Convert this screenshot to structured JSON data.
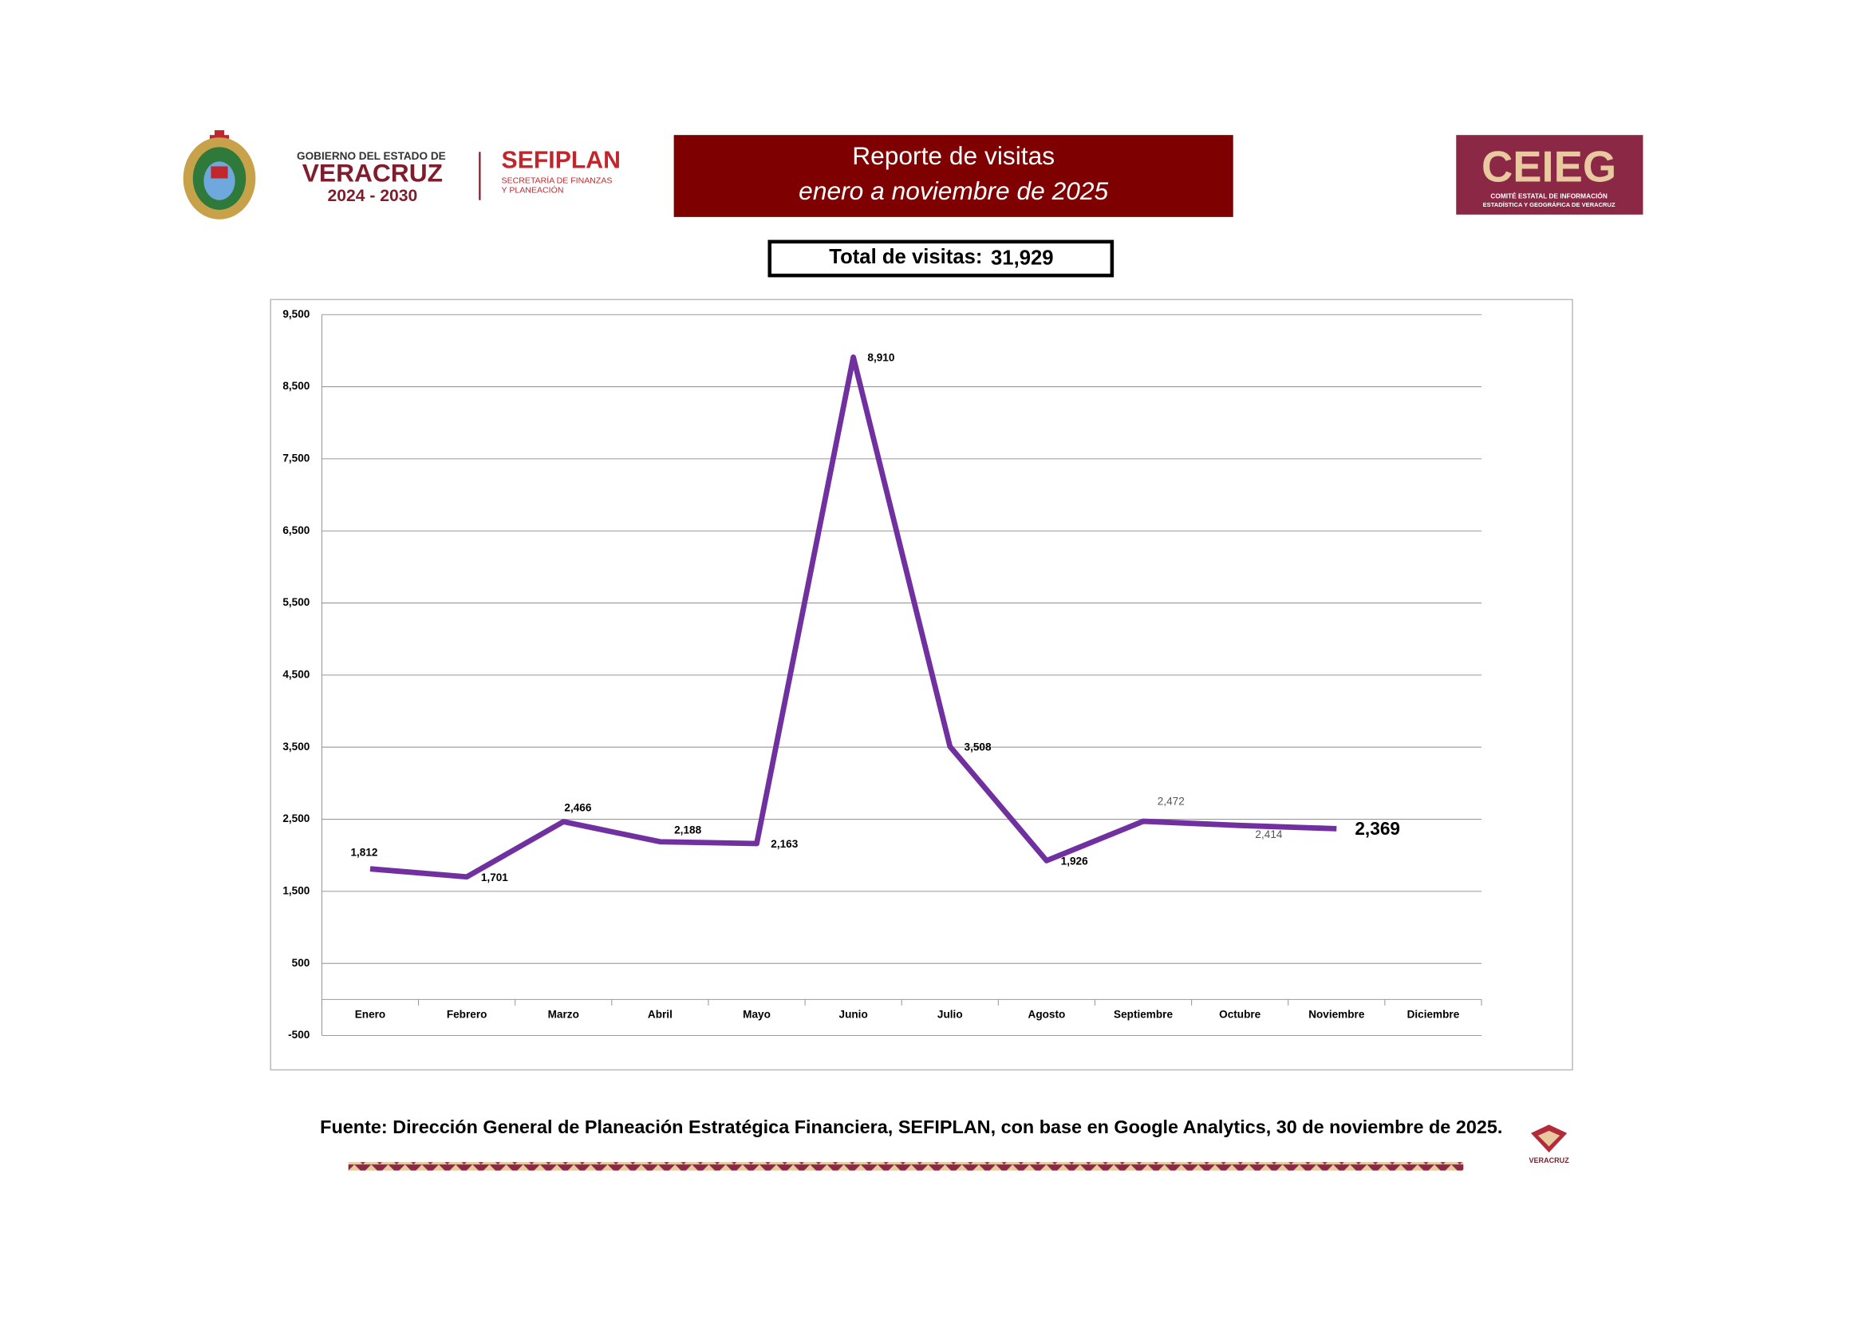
{
  "header": {
    "gov_line1": "GOBIERNO DEL ESTADO DE",
    "gov_line2": "VERACRUZ",
    "gov_line3": "2024 - 2030",
    "sefiplan": "SEFIPLAN",
    "sefiplan_line1": "SECRETARÍA DE FINANZAS",
    "sefiplan_line2": "Y PLANEACIÓN",
    "title": "Reporte de visitas",
    "subtitle": "enero a noviembre de 2025",
    "ceieg": "CEIEG",
    "ceieg_line1": "COMITÉ ESTATAL DE INFORMACIÓN",
    "ceieg_line2": "ESTADÍSTICA Y GEOGRÁFICA DE VERACRUZ",
    "total_label": "Total de visitas:",
    "total_value": "31,929"
  },
  "chart_data": {
    "type": "line",
    "categories": [
      "Enero",
      "Febrero",
      "Marzo",
      "Abril",
      "Mayo",
      "Junio",
      "Julio",
      "Agosto",
      "Septiembre",
      "Octubre",
      "Noviembre",
      "Diciembre"
    ],
    "values": [
      1812,
      1701,
      2466,
      2188,
      2163,
      8910,
      3508,
      1926,
      2472,
      2414,
      2369,
      null
    ],
    "value_labels": [
      "1,812",
      "1,701",
      "2,466",
      "2,188",
      "2,163",
      "8,910",
      "3,508",
      "1,926",
      "2,472",
      "2,414",
      "2,369",
      null
    ],
    "color": "#7030a0",
    "ylim": [
      -500,
      9500
    ],
    "yticks": [
      -500,
      500,
      {
        "value": 1500,
        "label": "1,500"
      },
      {
        "value": 2500,
        "label": "2,500"
      },
      {
        "value": 3500,
        "label": "3,500"
      },
      {
        "value": 4500,
        "label": "4,500"
      },
      {
        "value": 5500,
        "label": "5,500"
      },
      {
        "value": 6500,
        "label": "6,500"
      },
      {
        "value": 7500,
        "label": "7,500"
      },
      {
        "value": 8500,
        "label": "8,500"
      },
      {
        "value": 9500,
        "label": "9,500"
      }
    ],
    "grid": true
  },
  "footer": {
    "source": "Fuente: Dirección General de Planeación Estratégica Financiera, SEFIPLAN, con base en Google Analytics, 30 de noviembre de 2025.",
    "logo_text": "VERACRUZ"
  }
}
